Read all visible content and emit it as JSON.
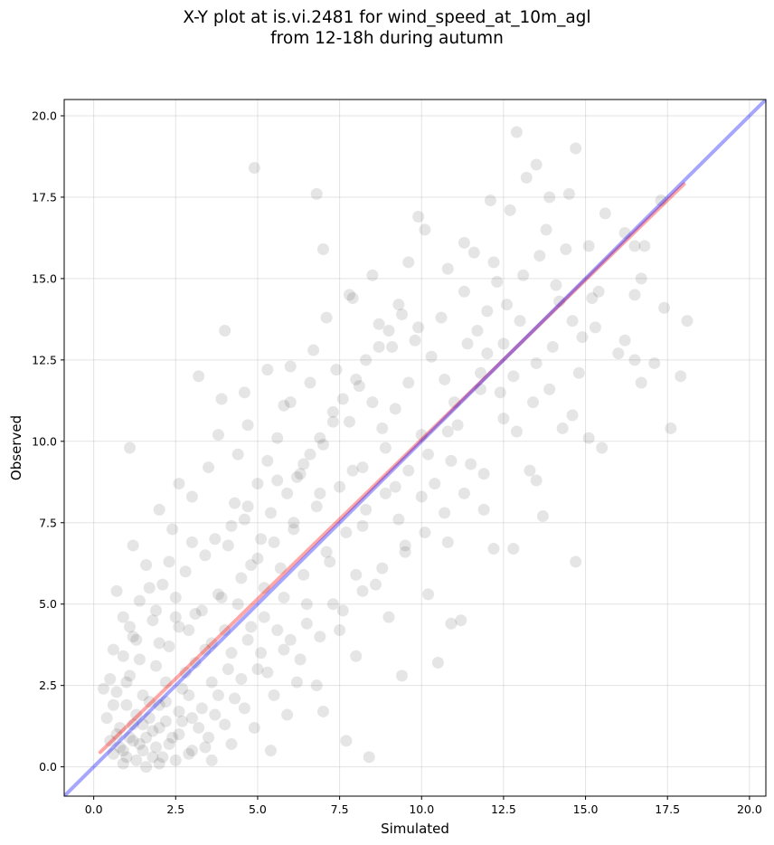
{
  "chart_data": {
    "type": "scatter",
    "title_line1": "X-Y plot at is.vi.2481 for wind_speed_at_10m_agl",
    "title_line2": "from 12-18h during autumn",
    "xlabel": "Simulated",
    "ylabel": "Observed",
    "xlim": [
      -0.9,
      20.5
    ],
    "ylim": [
      -0.9,
      20.5
    ],
    "xticks": [
      "0.0",
      "2.5",
      "5.0",
      "7.5",
      "10.0",
      "12.5",
      "15.0",
      "17.5",
      "20.0"
    ],
    "yticks": [
      "0.0",
      "2.5",
      "5.0",
      "7.5",
      "10.0",
      "12.5",
      "15.0",
      "17.5",
      "20.0"
    ],
    "grid": true,
    "point_color": "#000000",
    "fit_line": {
      "color": "#ff0000",
      "x": [
        0.2,
        18.0
      ],
      "y": [
        0.45,
        17.9
      ]
    },
    "identity_line": {
      "color": "#0000ff",
      "x": [
        -0.9,
        20.5
      ],
      "y": [
        -0.9,
        20.5
      ]
    },
    "points": [
      [
        1.0,
        0.3
      ],
      [
        1.2,
        0.8
      ],
      [
        0.8,
        1.2
      ],
      [
        1.5,
        0.5
      ],
      [
        1.8,
        1.1
      ],
      [
        2.1,
        0.3
      ],
      [
        0.5,
        0.8
      ],
      [
        1.3,
        1.6
      ],
      [
        2.4,
        0.9
      ],
      [
        0.9,
        0.1
      ],
      [
        1.6,
        0.0
      ],
      [
        2.0,
        1.9
      ],
      [
        0.7,
        2.3
      ],
      [
        1.1,
        2.8
      ],
      [
        2.7,
        1.4
      ],
      [
        3.0,
        0.5
      ],
      [
        2.2,
        2.6
      ],
      [
        1.4,
        3.3
      ],
      [
        0.6,
        0.4
      ],
      [
        3.3,
        1.8
      ],
      [
        1.9,
        0.6
      ],
      [
        2.5,
        0.2
      ],
      [
        1.7,
        2.0
      ],
      [
        0.4,
        1.5
      ],
      [
        2.8,
        2.9
      ],
      [
        3.5,
        0.9
      ],
      [
        1.2,
        4.0
      ],
      [
        2.3,
        3.7
      ],
      [
        0.9,
        3.4
      ],
      [
        3.8,
        2.2
      ],
      [
        1.5,
        1.3
      ],
      [
        0.8,
        0.6
      ],
      [
        1.3,
        0.2
      ],
      [
        2.6,
        1.7
      ],
      [
        3.1,
        3.2
      ],
      [
        1.0,
        1.9
      ],
      [
        2.0,
        0.1
      ],
      [
        0.3,
        2.4
      ],
      [
        1.8,
        4.5
      ],
      [
        2.9,
        0.4
      ],
      [
        3.6,
        3.8
      ],
      [
        4.0,
        1.3
      ],
      [
        1.4,
        5.1
      ],
      [
        2.5,
        4.6
      ],
      [
        3.3,
        4.8
      ],
      [
        4.2,
        3.5
      ],
      [
        0.7,
        5.4
      ],
      [
        2.1,
        5.6
      ],
      [
        3.9,
        5.2
      ],
      [
        4.5,
        2.7
      ],
      [
        1.6,
        6.2
      ],
      [
        2.8,
        6.0
      ],
      [
        3.4,
        6.5
      ],
      [
        4.1,
        6.8
      ],
      [
        4.8,
        4.3
      ],
      [
        5.0,
        3.0
      ],
      [
        1.2,
        6.8
      ],
      [
        2.4,
        7.3
      ],
      [
        3.7,
        7.0
      ],
      [
        4.6,
        7.6
      ],
      [
        5.2,
        5.5
      ],
      [
        5.5,
        2.2
      ],
      [
        2.0,
        7.9
      ],
      [
        3.0,
        8.3
      ],
      [
        4.3,
        8.1
      ],
      [
        5.0,
        8.7
      ],
      [
        5.7,
        6.1
      ],
      [
        6.0,
        3.9
      ],
      [
        1.1,
        9.8
      ],
      [
        2.6,
        8.7
      ],
      [
        3.5,
        9.2
      ],
      [
        4.4,
        9.6
      ],
      [
        5.3,
        9.4
      ],
      [
        6.1,
        7.3
      ],
      [
        6.5,
        5.0
      ],
      [
        6.8,
        2.5
      ],
      [
        3.8,
        10.2
      ],
      [
        4.7,
        10.5
      ],
      [
        5.6,
        10.1
      ],
      [
        6.3,
        9.0
      ],
      [
        6.9,
        8.4
      ],
      [
        7.2,
        6.3
      ],
      [
        7.5,
        4.2
      ],
      [
        7.0,
        1.7
      ],
      [
        3.9,
        11.3
      ],
      [
        4.6,
        11.5
      ],
      [
        5.8,
        11.1
      ],
      [
        6.6,
        11.8
      ],
      [
        7.3,
        10.6
      ],
      [
        7.9,
        9.1
      ],
      [
        8.2,
        7.4
      ],
      [
        8.6,
        5.6
      ],
      [
        8.0,
        3.4
      ],
      [
        7.7,
        0.8
      ],
      [
        3.2,
        12.0
      ],
      [
        4.0,
        13.4
      ],
      [
        6.0,
        12.3
      ],
      [
        6.7,
        12.8
      ],
      [
        7.4,
        12.2
      ],
      [
        8.1,
        11.7
      ],
      [
        8.8,
        10.4
      ],
      [
        9.2,
        8.6
      ],
      [
        9.5,
        6.8
      ],
      [
        9.0,
        4.6
      ],
      [
        9.4,
        2.8
      ],
      [
        8.4,
        0.3
      ],
      [
        7.1,
        13.8
      ],
      [
        7.9,
        14.4
      ],
      [
        8.7,
        13.6
      ],
      [
        9.1,
        12.9
      ],
      [
        9.6,
        11.8
      ],
      [
        10.0,
        10.2
      ],
      [
        10.4,
        8.7
      ],
      [
        10.8,
        6.9
      ],
      [
        10.2,
        5.3
      ],
      [
        10.9,
        4.4
      ],
      [
        10.5,
        3.2
      ],
      [
        8.5,
        15.1
      ],
      [
        9.3,
        14.2
      ],
      [
        9.9,
        13.5
      ],
      [
        10.3,
        12.6
      ],
      [
        10.7,
        11.9
      ],
      [
        11.1,
        10.5
      ],
      [
        11.5,
        9.3
      ],
      [
        11.9,
        7.9
      ],
      [
        12.2,
        6.7
      ],
      [
        11.2,
        4.5
      ],
      [
        9.6,
        15.5
      ],
      [
        10.1,
        16.5
      ],
      [
        10.8,
        15.3
      ],
      [
        11.3,
        14.6
      ],
      [
        11.7,
        13.4
      ],
      [
        12.0,
        12.7
      ],
      [
        12.4,
        11.5
      ],
      [
        12.9,
        10.3
      ],
      [
        13.3,
        9.1
      ],
      [
        13.5,
        8.8
      ],
      [
        12.8,
        6.7
      ],
      [
        11.6,
        15.8
      ],
      [
        12.2,
        15.5
      ],
      [
        12.6,
        14.2
      ],
      [
        13.0,
        13.7
      ],
      [
        13.5,
        12.4
      ],
      [
        13.9,
        11.6
      ],
      [
        14.3,
        10.4
      ],
      [
        14.6,
        10.8
      ],
      [
        15.1,
        10.1
      ],
      [
        15.5,
        9.8
      ],
      [
        13.7,
        7.7
      ],
      [
        12.1,
        17.4
      ],
      [
        12.7,
        17.1
      ],
      [
        13.2,
        18.1
      ],
      [
        13.5,
        18.5
      ],
      [
        13.9,
        17.5
      ],
      [
        12.9,
        19.5
      ],
      [
        14.5,
        17.6
      ],
      [
        14.7,
        19.0
      ],
      [
        13.8,
        16.5
      ],
      [
        14.4,
        15.9
      ],
      [
        15.1,
        16.0
      ],
      [
        15.6,
        17.0
      ],
      [
        16.2,
        16.4
      ],
      [
        16.5,
        16.0
      ],
      [
        16.8,
        16.0
      ],
      [
        16.5,
        14.5
      ],
      [
        16.7,
        15.0
      ],
      [
        15.4,
        14.6
      ],
      [
        14.2,
        14.3
      ],
      [
        14.9,
        13.2
      ],
      [
        15.3,
        13.5
      ],
      [
        16.0,
        12.7
      ],
      [
        16.5,
        12.5
      ],
      [
        16.7,
        11.8
      ],
      [
        17.1,
        12.4
      ],
      [
        17.4,
        14.1
      ],
      [
        17.9,
        12.0
      ],
      [
        18.1,
        13.7
      ],
      [
        17.6,
        10.4
      ],
      [
        16.2,
        13.1
      ],
      [
        14.8,
        12.1
      ],
      [
        17.3,
        17.4
      ],
      [
        14.7,
        6.3
      ],
      [
        4.9,
        18.4
      ],
      [
        6.8,
        17.6
      ],
      [
        7.0,
        15.9
      ],
      [
        9.9,
        16.9
      ],
      [
        11.3,
        16.1
      ],
      [
        7.8,
        14.5
      ],
      [
        6.0,
        11.2
      ],
      [
        5.3,
        12.2
      ],
      [
        1.9,
        3.1
      ],
      [
        2.2,
        1.4
      ],
      [
        0.6,
        1.9
      ],
      [
        1.0,
        2.6
      ],
      [
        1.3,
        3.9
      ],
      [
        2.7,
        2.4
      ],
      [
        3.2,
        1.2
      ],
      [
        3.6,
        2.6
      ],
      [
        0.9,
        4.6
      ],
      [
        1.7,
        5.5
      ],
      [
        2.3,
        6.3
      ],
      [
        2.9,
        4.2
      ],
      [
        3.4,
        3.6
      ],
      [
        4.0,
        4.2
      ],
      [
        4.4,
        5.0
      ],
      [
        4.8,
        6.2
      ],
      [
        5.1,
        7.0
      ],
      [
        5.4,
        7.8
      ],
      [
        5.9,
        8.4
      ],
      [
        6.2,
        8.9
      ],
      [
        6.6,
        9.6
      ],
      [
        6.9,
        10.1
      ],
      [
        7.3,
        10.9
      ],
      [
        7.6,
        11.3
      ],
      [
        8.0,
        11.9
      ],
      [
        8.3,
        12.5
      ],
      [
        8.7,
        12.9
      ],
      [
        9.0,
        13.4
      ],
      [
        9.4,
        13.9
      ],
      [
        9.8,
        13.1
      ],
      [
        4.2,
        7.4
      ],
      [
        4.7,
        8.0
      ],
      [
        5.6,
        8.8
      ],
      [
        6.4,
        9.3
      ],
      [
        7.0,
        9.9
      ],
      [
        7.8,
        10.6
      ],
      [
        8.5,
        11.2
      ],
      [
        9.2,
        11.0
      ],
      [
        8.9,
        9.8
      ],
      [
        8.2,
        9.2
      ],
      [
        7.5,
        8.6
      ],
      [
        6.8,
        8.0
      ],
      [
        6.1,
        7.5
      ],
      [
        5.5,
        6.9
      ],
      [
        5.0,
        6.4
      ],
      [
        4.5,
        5.8
      ],
      [
        3.8,
        5.3
      ],
      [
        3.1,
        4.7
      ],
      [
        2.6,
        4.3
      ],
      [
        2.0,
        3.8
      ],
      [
        5.2,
        4.6
      ],
      [
        5.8,
        5.2
      ],
      [
        6.4,
        5.9
      ],
      [
        7.1,
        6.6
      ],
      [
        7.7,
        7.2
      ],
      [
        8.3,
        7.9
      ],
      [
        8.9,
        8.4
      ],
      [
        9.6,
        9.1
      ],
      [
        10.2,
        9.6
      ],
      [
        10.8,
        10.3
      ],
      [
        6.3,
        3.3
      ],
      [
        6.9,
        4.0
      ],
      [
        7.6,
        4.8
      ],
      [
        8.2,
        5.4
      ],
      [
        8.8,
        6.1
      ],
      [
        9.5,
        6.6
      ],
      [
        10.1,
        7.2
      ],
      [
        10.7,
        7.8
      ],
      [
        11.3,
        8.4
      ],
      [
        11.9,
        9.0
      ],
      [
        1.1,
        0.9
      ],
      [
        1.4,
        0.7
      ],
      [
        0.7,
        1.0
      ],
      [
        1.6,
        0.9
      ],
      [
        1.2,
        1.3
      ],
      [
        0.9,
        0.5
      ],
      [
        2.0,
        1.2
      ],
      [
        1.7,
        1.5
      ],
      [
        2.3,
        0.7
      ],
      [
        1.8,
        0.3
      ],
      [
        2.6,
        1.0
      ],
      [
        3.0,
        1.5
      ],
      [
        3.4,
        0.6
      ],
      [
        2.2,
        2.0
      ],
      [
        1.5,
        2.2
      ],
      [
        0.5,
        2.7
      ],
      [
        2.9,
        2.2
      ],
      [
        3.7,
        1.6
      ],
      [
        4.2,
        0.7
      ],
      [
        4.6,
        1.8
      ],
      [
        5.3,
        2.9
      ],
      [
        5.8,
        3.6
      ],
      [
        6.5,
        4.4
      ],
      [
        7.3,
        5.0
      ],
      [
        8.0,
        5.9
      ],
      [
        3.0,
        6.9
      ],
      [
        2.5,
        5.2
      ],
      [
        1.9,
        4.8
      ],
      [
        1.1,
        4.3
      ],
      [
        0.6,
        3.6
      ],
      [
        12.3,
        14.9
      ],
      [
        12.5,
        13.0
      ],
      [
        11.8,
        12.1
      ],
      [
        11.0,
        11.2
      ],
      [
        10.6,
        13.8
      ],
      [
        11.4,
        13.0
      ],
      [
        12.0,
        14.0
      ],
      [
        13.1,
        15.1
      ],
      [
        13.6,
        15.7
      ],
      [
        14.1,
        14.8
      ],
      [
        12.8,
        12.0
      ],
      [
        13.4,
        11.2
      ],
      [
        14.0,
        12.9
      ],
      [
        14.6,
        13.7
      ],
      [
        15.2,
        14.4
      ],
      [
        12.5,
        10.7
      ],
      [
        11.8,
        11.6
      ],
      [
        10.9,
        9.4
      ],
      [
        10.0,
        8.3
      ],
      [
        9.3,
        7.6
      ],
      [
        4.3,
        2.1
      ],
      [
        4.9,
        1.2
      ],
      [
        5.4,
        0.5
      ],
      [
        5.9,
        1.6
      ],
      [
        6.2,
        2.6
      ],
      [
        3.6,
        0.2
      ],
      [
        4.1,
        3.0
      ],
      [
        4.7,
        3.9
      ],
      [
        5.1,
        3.5
      ],
      [
        5.6,
        4.2
      ]
    ]
  }
}
